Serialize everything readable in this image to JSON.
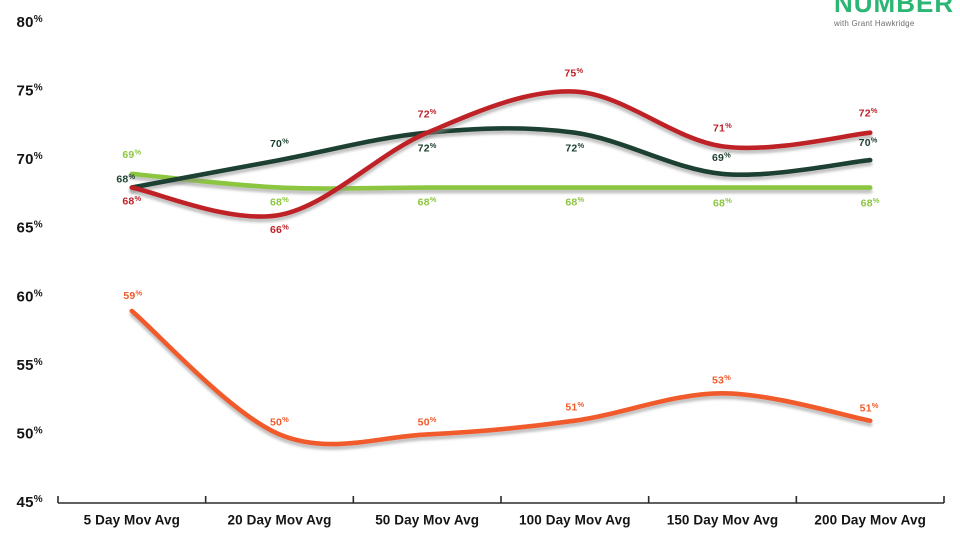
{
  "logo": {
    "brand": "NUMBER",
    "tagline": "with Grant Hawkridge",
    "brand_color": "#2bb673",
    "tagline_color": "#6e6f72"
  },
  "chart_data": {
    "type": "line",
    "title": "",
    "xlabel": "",
    "ylabel": "",
    "categories": [
      "5 Day Mov Avg",
      "20 Day Mov Avg",
      "50 Day Mov Avg",
      "100 Day Mov Avg",
      "150 Day Mov Avg",
      "200 Day Mov Avg"
    ],
    "series": [
      {
        "name": "light-green-line",
        "color": "#8cc63f",
        "values": [
          69,
          68,
          68,
          68,
          68,
          68
        ]
      },
      {
        "name": "dark-green-line",
        "color": "#1d4030",
        "values": [
          68,
          70,
          72,
          72,
          69,
          70
        ]
      },
      {
        "name": "dark-red-line",
        "color": "#bf2127",
        "values": [
          68,
          66,
          72,
          75,
          71,
          72
        ]
      },
      {
        "name": "orange-line",
        "color": "#f15a29",
        "values": [
          59,
          50,
          50,
          51,
          53,
          51
        ]
      }
    ],
    "ylim": [
      45,
      80
    ],
    "ytick_step": 5,
    "yticks": [
      "80%",
      "75%",
      "70%",
      "65%",
      "60%",
      "55%",
      "50%",
      "45%"
    ],
    "data_label_suffix": "%",
    "grid": false,
    "legend": "none",
    "line_smoothing": true
  }
}
